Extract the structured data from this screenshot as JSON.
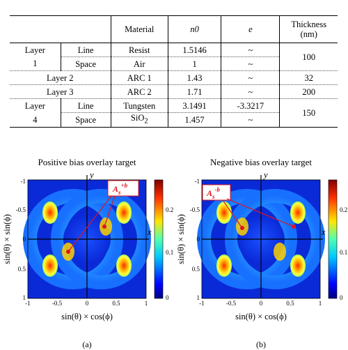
{
  "table": {
    "headers": {
      "material": "Material",
      "n0": "n0",
      "e": "e",
      "thickness_1": "Thickness",
      "thickness_2": "(nm)"
    },
    "rows": {
      "l1_label_a": "Layer",
      "l1_label_b": "1",
      "l1_line": "Line",
      "l1_line_material": "Resist",
      "l1_line_n0": "1.5146",
      "l1_line_e": "~",
      "l1_space": "Space",
      "l1_space_material": "Air",
      "l1_space_n0": "1",
      "l1_space_e": "~",
      "l1_thickness": "100",
      "l2_label": "Layer 2",
      "l2_material": "ARC 1",
      "l2_n0": "1.43",
      "l2_e": "~",
      "l2_thickness": "32",
      "l3_label": "Layer 3",
      "l3_material": "ARC 2",
      "l3_n0": "1.71",
      "l3_e": "~",
      "l3_thickness": "200",
      "l4_label_a": "Layer",
      "l4_label_b": "4",
      "l4_line": "Line",
      "l4_line_material": "Tungsten",
      "l4_line_n0": "3.1491",
      "l4_line_e": "-3.3217",
      "l4_space": "Space",
      "l4_space_material": "SiO",
      "l4_space_material_sub": "2",
      "l4_space_n0": "1.457",
      "l4_space_e": "~",
      "l4_thickness": "150"
    }
  },
  "figure_a": {
    "title": "Positive bias overlay target",
    "caption": "(a)",
    "callout_main": "A",
    "callout_sub": "s",
    "callout_sup": "+b"
  },
  "figure_b": {
    "title": "Negative bias overlay target",
    "caption": "(b)",
    "callout_main": "A",
    "callout_sub": "s",
    "callout_sup": "-b"
  },
  "axes": {
    "xlabel": "sin(θ) × cos(ϕ)",
    "ylabel": "sin(θ) × sin(ϕ)",
    "x_axis_letter": "x",
    "y_axis_letter": "y",
    "xticks": [
      "-1",
      "-0.5",
      "0",
      "0.5",
      "1"
    ],
    "yticks": [
      "-1",
      "-0.5",
      "0",
      "0.5",
      "1"
    ],
    "colorbar_ticks": [
      "0.2",
      "0.1",
      "0"
    ]
  },
  "chart_data": [
    {
      "type": "heatmap",
      "title": "Positive bias overlay target",
      "xlabel": "sin(θ) × cos(ϕ)",
      "ylabel": "sin(θ) × sin(ϕ)",
      "xlim": [
        -1,
        1
      ],
      "ylim": [
        -1,
        1
      ],
      "colorbar_range": [
        0,
        0.27
      ],
      "colorbar_ticks": [
        0,
        0.1,
        0.2
      ],
      "colormap": "jet",
      "annotation": "As+b"
    },
    {
      "type": "heatmap",
      "title": "Negative bias overlay target",
      "xlabel": "sin(θ) × cos(ϕ)",
      "ylabel": "sin(θ) × sin(ϕ)",
      "xlim": [
        -1,
        1
      ],
      "ylim": [
        -1,
        1
      ],
      "colorbar_range": [
        0,
        0.27
      ],
      "colorbar_ticks": [
        0,
        0.1,
        0.2
      ],
      "colormap": "jet",
      "annotation": "As-b"
    }
  ],
  "colors": {
    "background_field": "#0a2ad8",
    "annotation": "#e0141e"
  }
}
